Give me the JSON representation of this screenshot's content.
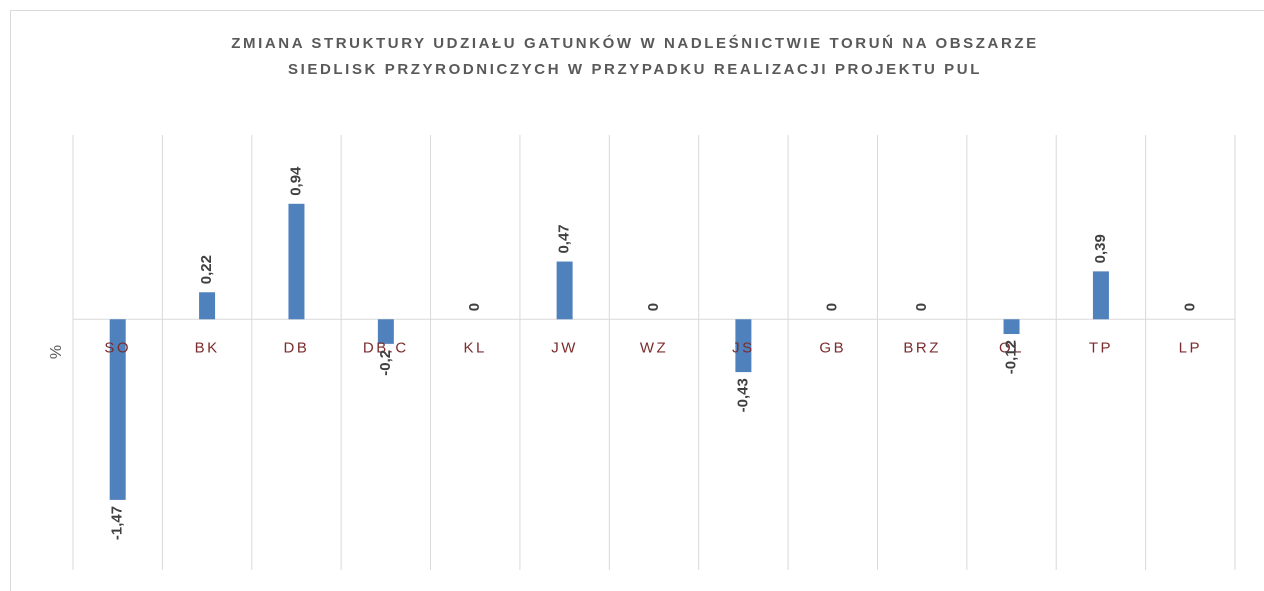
{
  "chart_data": {
    "type": "bar",
    "title": [
      "ZMIANA STRUKTURY UDZIAŁU GATUNKÓW W NADLEŚNICTWIE TORUŃ NA OBSZARZE",
      "SIEDLISK PRZYRODNICZYCH W PRZYPADKU REALIZACJI PROJEKTU PUL"
    ],
    "y_label": "%",
    "categories": [
      "SO",
      "BK",
      "DB",
      "DB.C",
      "KL",
      "JW",
      "WZ",
      "JS",
      "GB",
      "BRZ",
      "OL",
      "TP",
      "LP"
    ],
    "values": [
      -1.47,
      0.22,
      0.94,
      -0.2,
      0,
      0.47,
      0,
      -0.43,
      0,
      0,
      -0.12,
      0.39,
      0
    ],
    "value_labels": [
      "-1,47",
      "0,22",
      "0,94",
      "-0,2",
      "0",
      "0,47",
      "0",
      "-0,43",
      "0",
      "0",
      "-0,12",
      "0,39",
      "0"
    ],
    "color": "#4f81bd",
    "ylim": [
      -2,
      1.5
    ]
  }
}
